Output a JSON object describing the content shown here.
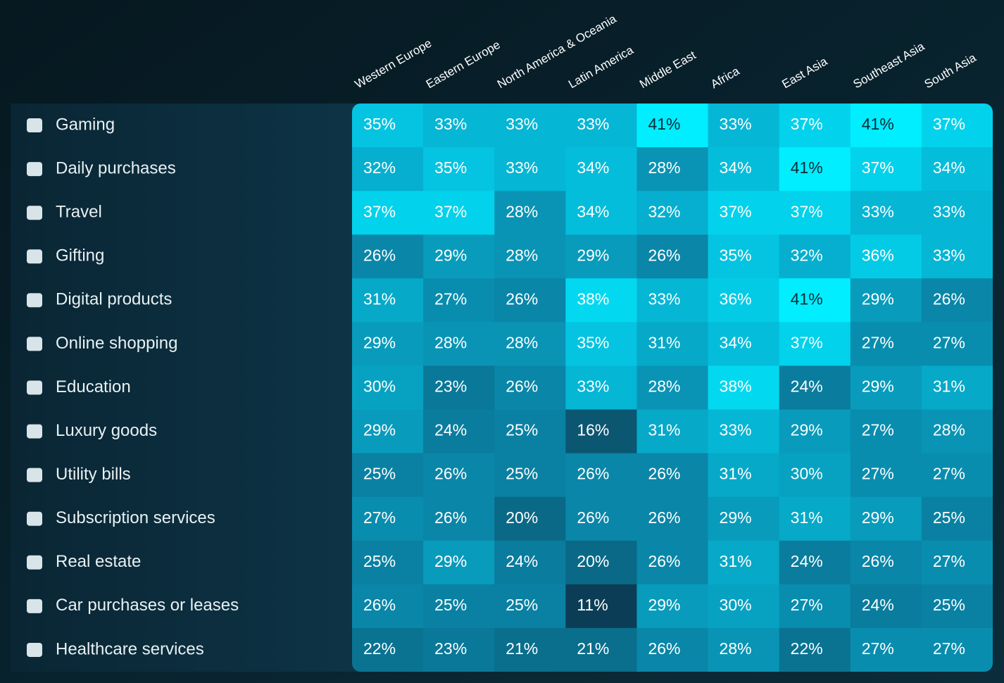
{
  "chart_data": {
    "type": "heatmap",
    "columns": [
      "Western Europe",
      "Eastern Europe",
      "North America & Oceania",
      "Latin America",
      "Middle East",
      "Africa",
      "East Asia",
      "Southeast Asia",
      "South Asia"
    ],
    "rows": [
      "Gaming",
      "Daily purchases",
      "Travel",
      "Gifting",
      "Digital products",
      "Online shopping",
      "Education",
      "Luxury goods",
      "Utility bills",
      "Subscription services",
      "Real estate",
      "Car purchases or leases",
      "Healthcare services"
    ],
    "values": [
      [
        35,
        33,
        33,
        33,
        41,
        33,
        37,
        41,
        37
      ],
      [
        32,
        35,
        33,
        34,
        28,
        34,
        41,
        37,
        34
      ],
      [
        37,
        37,
        28,
        34,
        32,
        37,
        37,
        33,
        33
      ],
      [
        26,
        29,
        28,
        29,
        26,
        35,
        32,
        36,
        33
      ],
      [
        31,
        27,
        26,
        38,
        33,
        36,
        41,
        29,
        26
      ],
      [
        29,
        28,
        28,
        35,
        31,
        34,
        37,
        27,
        27
      ],
      [
        30,
        23,
        26,
        33,
        28,
        38,
        24,
        29,
        31
      ],
      [
        29,
        24,
        25,
        16,
        31,
        33,
        29,
        27,
        28
      ],
      [
        25,
        26,
        25,
        26,
        26,
        31,
        30,
        27,
        27
      ],
      [
        27,
        26,
        20,
        26,
        26,
        29,
        31,
        29,
        25
      ],
      [
        25,
        29,
        24,
        20,
        26,
        31,
        24,
        26,
        27
      ],
      [
        26,
        25,
        25,
        11,
        29,
        30,
        27,
        24,
        25
      ],
      [
        22,
        23,
        21,
        21,
        26,
        28,
        22,
        27,
        27
      ]
    ],
    "value_labels": [
      [
        "35%",
        "33%",
        "33%",
        "33%",
        "41%",
        "33%",
        "37%",
        "41%",
        "37%"
      ],
      [
        "32%",
        "35%",
        "33%",
        "34%",
        "28%",
        "34%",
        "41%",
        "37%",
        "34%"
      ],
      [
        "37%",
        "37%",
        "28%",
        "34%",
        "32%",
        "37%",
        "37%",
        "33%",
        "33%"
      ],
      [
        "26%",
        "29%",
        "28%",
        "29%",
        "26%",
        "35%",
        "32%",
        "36%",
        "33%"
      ],
      [
        "31%",
        "27%",
        "26%",
        "38%",
        "33%",
        "36%",
        "41%",
        "29%",
        "26%"
      ],
      [
        "29%",
        "28%",
        "28%",
        "35%",
        "31%",
        "34%",
        "37%",
        "27%",
        "27%"
      ],
      [
        "30%",
        "23%",
        "26%",
        "33%",
        "28%",
        "38%",
        "24%",
        "29%",
        "31%"
      ],
      [
        "29%",
        "24%",
        "25%",
        "16%",
        "31%",
        "33%",
        "29%",
        "27%",
        "28%"
      ],
      [
        "25%",
        "26%",
        "25%",
        "26%",
        "26%",
        "31%",
        "30%",
        "27%",
        "27%"
      ],
      [
        "27%",
        "26%",
        "20%",
        "26%",
        "26%",
        "29%",
        "31%",
        "29%",
        "25%"
      ],
      [
        "25%",
        "29%",
        "24%",
        "20%",
        "26%",
        "31%",
        "24%",
        "26%",
        "27%"
      ],
      [
        "26%",
        "25%",
        "25%",
        "11%",
        "29%",
        "30%",
        "27%",
        "24%",
        "25%"
      ],
      [
        "22%",
        "23%",
        "21%",
        "21%",
        "26%",
        "28%",
        "22%",
        "27%",
        "27%"
      ]
    ]
  }
}
